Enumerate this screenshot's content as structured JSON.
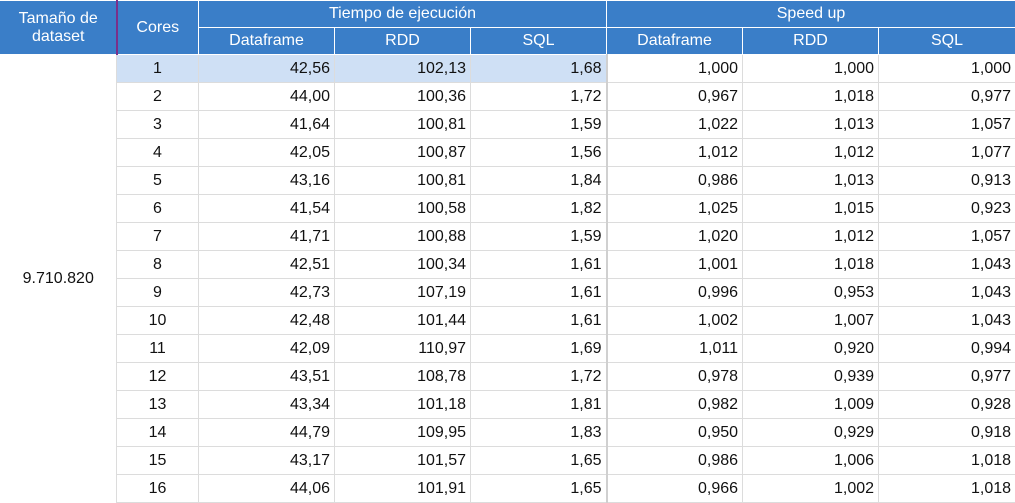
{
  "headers": {
    "size": "Tamaño de dataset",
    "cores": "Cores",
    "time_group": "Tiempo de ejecución",
    "speedup_group": "Speed up",
    "time_cols": [
      "Dataframe",
      "RDD",
      "SQL"
    ],
    "speedup_cols": [
      "Dataframe",
      "RDD",
      "SQL"
    ]
  },
  "dataset_size": "9.710.820",
  "chart_data": {
    "type": "table",
    "columns": [
      "Cores",
      "Dataframe",
      "RDD",
      "SQL",
      "Dataframe",
      "RDD",
      "SQL"
    ],
    "rows": [
      [
        "1",
        "42,56",
        "102,13",
        "1,68",
        "1,000",
        "1,000",
        "1,000"
      ],
      [
        "2",
        "44,00",
        "100,36",
        "1,72",
        "0,967",
        "1,018",
        "0,977"
      ],
      [
        "3",
        "41,64",
        "100,81",
        "1,59",
        "1,022",
        "1,013",
        "1,057"
      ],
      [
        "4",
        "42,05",
        "100,87",
        "1,56",
        "1,012",
        "1,012",
        "1,077"
      ],
      [
        "5",
        "43,16",
        "100,81",
        "1,84",
        "0,986",
        "1,013",
        "0,913"
      ],
      [
        "6",
        "41,54",
        "100,58",
        "1,82",
        "1,025",
        "1,015",
        "0,923"
      ],
      [
        "7",
        "41,71",
        "100,88",
        "1,59",
        "1,020",
        "1,012",
        "1,057"
      ],
      [
        "8",
        "42,51",
        "100,34",
        "1,61",
        "1,001",
        "1,018",
        "1,043"
      ],
      [
        "9",
        "42,73",
        "107,19",
        "1,61",
        "0,996",
        "0,953",
        "1,043"
      ],
      [
        "10",
        "42,48",
        "101,44",
        "1,61",
        "1,002",
        "1,007",
        "1,043"
      ],
      [
        "11",
        "42,09",
        "110,97",
        "1,69",
        "1,011",
        "0,920",
        "0,994"
      ],
      [
        "12",
        "43,51",
        "108,78",
        "1,72",
        "0,978",
        "0,939",
        "0,977"
      ],
      [
        "13",
        "43,34",
        "101,18",
        "1,81",
        "0,982",
        "1,009",
        "0,928"
      ],
      [
        "14",
        "44,79",
        "109,95",
        "1,83",
        "0,950",
        "0,929",
        "0,918"
      ],
      [
        "15",
        "43,17",
        "101,57",
        "1,65",
        "0,986",
        "1,006",
        "1,018"
      ],
      [
        "16",
        "44,06",
        "101,91",
        "1,65",
        "0,966",
        "1,002",
        "1,018"
      ]
    ]
  },
  "colors": {
    "header_bg": "#3a7ec8",
    "header_text": "#ffffff",
    "selection_bg": "#cfe0f5",
    "grid": "#dcdcdc",
    "size_header_border": "#7a2f8a"
  }
}
